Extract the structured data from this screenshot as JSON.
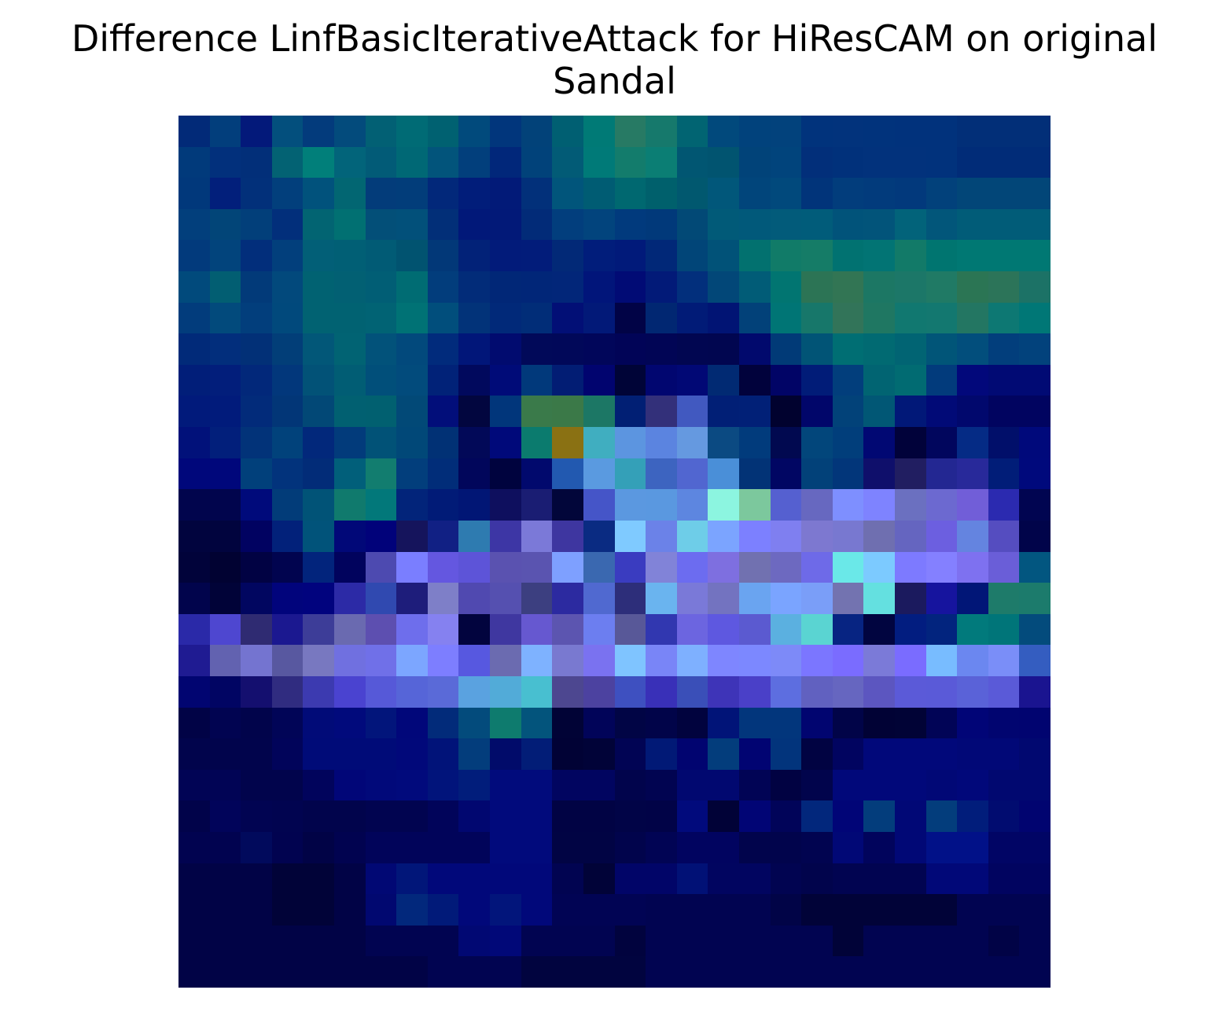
{
  "title": {
    "line1": "Difference LinfBasicIterativeAttack for HiResCAM on original",
    "line2": "Sandal"
  },
  "chart_data": {
    "type": "heatmap",
    "title": "Difference LinfBasicIterativeAttack for HiResCAM on original Sandal",
    "xlabel": "",
    "ylabel": "",
    "axes_visible": false,
    "grid": false,
    "legend": "none",
    "rows": 28,
    "cols": 28,
    "cell_colors": [
      [
        "#022a78",
        "#023e7c",
        "#03197a",
        "#034f7d",
        "#033b7c",
        "#034b7c",
        "#026074",
        "#006b75",
        "#006171",
        "#014a7c",
        "#01367c",
        "#024279",
        "#005f72",
        "#007a76",
        "#277a64",
        "#16796c",
        "#016472",
        "#01497c",
        "#01427c",
        "#02427c",
        "#01337c",
        "#02337c",
        "#01337c",
        "#01327c",
        "#01327c",
        "#022f78",
        "#022f78",
        "#022f78"
      ],
      [
        "#013a7b",
        "#02307c",
        "#022f79",
        "#036273",
        "#017f7a",
        "#02647a",
        "#025b77",
        "#006875",
        "#02547b",
        "#023f7c",
        "#01277a",
        "#01427a",
        "#025b76",
        "#007a78",
        "#137c6c",
        "#0b7e74",
        "#015672",
        "#015470",
        "#014379",
        "#01447c",
        "#022f7a",
        "#01317b",
        "#02327c",
        "#02327c",
        "#01327c",
        "#012c78",
        "#012c78",
        "#012c78"
      ],
      [
        "#01387b",
        "#021f7b",
        "#02307a",
        "#023f7c",
        "#01527c",
        "#026672",
        "#033c7a",
        "#023d7a",
        "#02287a",
        "#011d7a",
        "#021a78",
        "#02307a",
        "#01557b",
        "#005c73",
        "#006870",
        "#00606c",
        "#01586f",
        "#01577a",
        "#01457b",
        "#01497c",
        "#01347a",
        "#023d7c",
        "#023b7c",
        "#02397c",
        "#02417b",
        "#024678",
        "#024678",
        "#024678"
      ],
      [
        "#023f7c",
        "#024578",
        "#023f7a",
        "#022f7b",
        "#026472",
        "#017072",
        "#034f78",
        "#02507a",
        "#022f78",
        "#011879",
        "#021978",
        "#022b78",
        "#023e7d",
        "#02447d",
        "#013a7d",
        "#01397a",
        "#024976",
        "#015a78",
        "#01597a",
        "#025b7a",
        "#015c7a",
        "#01537a",
        "#02547a",
        "#02637a",
        "#02567a",
        "#015c78",
        "#015c78",
        "#015c78"
      ],
      [
        "#023a7c",
        "#02447c",
        "#022e7b",
        "#023f7c",
        "#025f77",
        "#015f75",
        "#015b75",
        "#015370",
        "#023878",
        "#022278",
        "#021b7a",
        "#021c7a",
        "#022977",
        "#011d7b",
        "#011a7a",
        "#012878",
        "#014578",
        "#015278",
        "#02716f",
        "#117b68",
        "#157c67",
        "#017271",
        "#027474",
        "#127a68",
        "#007570",
        "#007873",
        "#007873",
        "#007873"
      ],
      [
        "#014a7c",
        "#025e72",
        "#023a79",
        "#02497c",
        "#016272",
        "#026073",
        "#015e75",
        "#006c73",
        "#023d7c",
        "#022c79",
        "#012777",
        "#012678",
        "#022679",
        "#01157a",
        "#010b75",
        "#021a78",
        "#022f7c",
        "#024778",
        "#015c77",
        "#017571",
        "#2c7455",
        "#327554",
        "#1c7764",
        "#1c7768",
        "#207a65",
        "#2b7554",
        "#2c7459",
        "#1c7266"
      ],
      [
        "#023c7c",
        "#024a7c",
        "#023e7c",
        "#01497c",
        "#016272",
        "#016272",
        "#016374",
        "#007275",
        "#014e7c",
        "#023379",
        "#012979",
        "#012d78",
        "#020f76",
        "#021978",
        "#010346",
        "#012772",
        "#011b77",
        "#011474",
        "#024179",
        "#007575",
        "#17776a",
        "#327459",
        "#1f7762",
        "#117870",
        "#137870",
        "#237662",
        "#0d7873",
        "#007776"
      ],
      [
        "#012a79",
        "#022e7c",
        "#023077",
        "#023e78",
        "#025778",
        "#016373",
        "#02527a",
        "#02497c",
        "#012b7c",
        "#011679",
        "#010b6f",
        "#010959",
        "#010859",
        "#01065a",
        "#010457",
        "#010555",
        "#010651",
        "#010650",
        "#01096d",
        "#013a77",
        "#015476",
        "#006e73",
        "#016a72",
        "#016473",
        "#015578",
        "#024e7c",
        "#023e7c",
        "#02427c"
      ],
      [
        "#011e79",
        "#021e7b",
        "#02287a",
        "#02377b",
        "#025277",
        "#015d74",
        "#014f7a",
        "#024b7c",
        "#012278",
        "#01095d",
        "#000b78",
        "#01397b",
        "#021d74",
        "#01046f",
        "#000437",
        "#010670",
        "#010875",
        "#012a73",
        "#01023c",
        "#010466",
        "#011c78",
        "#023e7c",
        "#016472",
        "#016b72",
        "#023b7c",
        "#02087b",
        "#010a74",
        "#010a74"
      ],
      [
        "#011a7b",
        "#011b7b",
        "#022b7a",
        "#023677",
        "#024876",
        "#016071",
        "#016070",
        "#024977",
        "#020e7a",
        "#02063f",
        "#01367b",
        "#3a7a4a",
        "#3b7948",
        "#1c7765",
        "#011f74",
        "#33307a",
        "#4159c0",
        "#011f76",
        "#012077",
        "#01022f",
        "#01066a",
        "#024279",
        "#015775",
        "#011878",
        "#010a77",
        "#01086d",
        "#010460",
        "#010460"
      ],
      [
        "#01117a",
        "#021f7b",
        "#023379",
        "#01427b",
        "#02287b",
        "#023b7b",
        "#015277",
        "#014878",
        "#013175",
        "#020958",
        "#00097a",
        "#0b7b6e",
        "#8a7113",
        "#40aec0",
        "#5c95e0",
        "#5b84e0",
        "#6599e0",
        "#0b4a82",
        "#013b7c",
        "#010950",
        "#02467b",
        "#013e7b",
        "#010873",
        "#01023a",
        "#01065d",
        "#052b85",
        "#010f6a",
        "#00097b"
      ],
      [
        "#00077b",
        "#00077b",
        "#01407b",
        "#02337c",
        "#022c78",
        "#015f7a",
        "#127d6f",
        "#023e7c",
        "#012d79",
        "#01065b",
        "#00033e",
        "#01096d",
        "#2259b0",
        "#5a9ae0",
        "#34a0b8",
        "#3d64c0",
        "#5166d0",
        "#4a8fd8",
        "#023376",
        "#010663",
        "#024179",
        "#02367a",
        "#0f0f6b",
        "#211e61",
        "#232792",
        "#28299a",
        "#011d78",
        "#00097c"
      ],
      [
        "#01054d",
        "#01054d",
        "#000a7b",
        "#023c79",
        "#015377",
        "#107a6d",
        "#02787a",
        "#02247a",
        "#011b77",
        "#011675",
        "#0e0f5e",
        "#1a1d73",
        "#02063a",
        "#4555c8",
        "#5b98e0",
        "#5a98e0",
        "#5d86e0",
        "#8cf5e0",
        "#7cc89d",
        "#5560d0",
        "#6768c0",
        "#7e8fff",
        "#7e83ff",
        "#6b70c0",
        "#6c69d0",
        "#715ed8",
        "#2b2ab0",
        "#010551"
      ],
      [
        "#01043e",
        "#01043e",
        "#010261",
        "#02217a",
        "#01537a",
        "#010878",
        "#01027a",
        "#15145c",
        "#112084",
        "#2e7bb0",
        "#3d36a5",
        "#7b79d8",
        "#3e36a0",
        "#0a2b82",
        "#7fcaff",
        "#6b82e8",
        "#6ecde8",
        "#7ba4ff",
        "#7c80ff",
        "#7f7ff0",
        "#7d78d0",
        "#7878d0",
        "#6f6fb0",
        "#6565c0",
        "#6c5fe0",
        "#6484e0",
        "#554dc0",
        "#01044a"
      ],
      [
        "#01033a",
        "#010232",
        "#010243",
        "#01044f",
        "#02247c",
        "#01035d",
        "#4d4ab0",
        "#7a7eff",
        "#6457e0",
        "#5d54d8",
        "#5a52b0",
        "#5a54b0",
        "#7ea0ff",
        "#3a68b0",
        "#3a3cc0",
        "#8183d8",
        "#6c6cf0",
        "#7e6fe0",
        "#7171b0",
        "#6d69c0",
        "#6e6ae8",
        "#6ae8e8",
        "#7ccaff",
        "#7d7aff",
        "#8480ff",
        "#7e71f0",
        "#6a5ed8",
        "#025680"
      ],
      [
        "#01044c",
        "#010338",
        "#010660",
        "#01047c",
        "#01037e",
        "#2c2aa6",
        "#3049b0",
        "#1e1d7b",
        "#7e7fc8",
        "#5049b0",
        "#5550b0",
        "#3c3f80",
        "#2c2aa0",
        "#5069d0",
        "#2d2e7a",
        "#6ab4ef",
        "#7a79d8",
        "#7373c0",
        "#6aa4f0",
        "#7aa4ff",
        "#7a9ef8",
        "#7373b0",
        "#64e0e0",
        "#1b1a5e",
        "#16149e",
        "#011677",
        "#1e7b6a",
        "#1c7b6c"
      ],
      [
        "#2a29a8",
        "#4e47d0",
        "#2f2b72",
        "#1b1890",
        "#3d3d98",
        "#6a6ab0",
        "#5d4fb0",
        "#6e6eec",
        "#8581f0",
        "#02043e",
        "#3f37a0",
        "#6658d0",
        "#5c55b0",
        "#6c7ef0",
        "#585898",
        "#3137b0",
        "#6c65e0",
        "#5e58e0",
        "#5b5ad0",
        "#5bb0e0",
        "#5ad4d2",
        "#072482",
        "#010540",
        "#021d80",
        "#02247e",
        "#017a7c",
        "#007579",
        "#034b7c"
      ],
      [
        "#1f1b92",
        "#6262b0",
        "#7474d0",
        "#5858a0",
        "#7878c0",
        "#7070e0",
        "#7070e8",
        "#7ca6ff",
        "#7d7eff",
        "#5758e0",
        "#6b6bb0",
        "#7eb2ff",
        "#7979d0",
        "#7a72f0",
        "#7fc4ff",
        "#7985f7",
        "#7eb0ff",
        "#7e86ff",
        "#7c88ff",
        "#7d8af8",
        "#7b76ff",
        "#7a6cff",
        "#7b7ad8",
        "#7a6cff",
        "#78bcff",
        "#6b87f0",
        "#7a8ef8",
        "#345dc0"
      ],
      [
        "#010571",
        "#010563",
        "#140f6f",
        "#302c80",
        "#3c3ab0",
        "#4a43d0",
        "#5659d8",
        "#5665d8",
        "#5a6ad8",
        "#5aa2e0",
        "#52abd8",
        "#48bfd0",
        "#4d4790",
        "#4c42a0",
        "#3e50c0",
        "#3930b8",
        "#3a4fb8",
        "#3e34b8",
        "#4a40c8",
        "#5d6ee0",
        "#6161c0",
        "#6666c0",
        "#5c56c0",
        "#5b5ad8",
        "#5a5ad8",
        "#5a62d8",
        "#5a5ad8",
        "#1a1490"
      ],
      [
        "#010346",
        "#010451",
        "#01044b",
        "#010557",
        "#010b78",
        "#010a7c",
        "#02157b",
        "#01077a",
        "#022b7a",
        "#034b7c",
        "#0e7b6e",
        "#03547c",
        "#010336",
        "#010459",
        "#010545",
        "#010449",
        "#01033e",
        "#011478",
        "#02367c",
        "#02367c",
        "#010570",
        "#010448",
        "#010235",
        "#010336",
        "#010456",
        "#010577",
        "#010570",
        "#010470"
      ],
      [
        "#01044c",
        "#01044c",
        "#01044c",
        "#01045a",
        "#000b78",
        "#000b78",
        "#000b78",
        "#01087a",
        "#011379",
        "#033d7c",
        "#010b6a",
        "#021d77",
        "#010235",
        "#010338",
        "#010454",
        "#011976",
        "#010470",
        "#033d7c",
        "#010472",
        "#02347c",
        "#010342",
        "#010460",
        "#01087a",
        "#01087a",
        "#01087a",
        "#010877",
        "#010877",
        "#010870"
      ],
      [
        "#010455",
        "#010455",
        "#01044c",
        "#01044c",
        "#01045c",
        "#010678",
        "#01097a",
        "#010a7c",
        "#01147b",
        "#011d7b",
        "#010b7c",
        "#010b7c",
        "#010560",
        "#010560",
        "#01044c",
        "#010451",
        "#010870",
        "#010870",
        "#010455",
        "#010242",
        "#01044c",
        "#01087a",
        "#01087a",
        "#01087a",
        "#010876",
        "#01087a",
        "#010870",
        "#010870"
      ],
      [
        "#01034a",
        "#01045a",
        "#010452",
        "#010450",
        "#01044c",
        "#01044c",
        "#010450",
        "#010450",
        "#01045a",
        "#010770",
        "#010a7c",
        "#010a7c",
        "#010344",
        "#010344",
        "#010447",
        "#010347",
        "#010a7c",
        "#010237",
        "#010575",
        "#010459",
        "#02277c",
        "#010577",
        "#033d7c",
        "#010876",
        "#033d7c",
        "#011d7b",
        "#010c70",
        "#010470"
      ],
      [
        "#010350",
        "#010350",
        "#010a5c",
        "#010350",
        "#010346",
        "#010350",
        "#01045a",
        "#01045a",
        "#01045a",
        "#01045a",
        "#010a7c",
        "#010a7c",
        "#010444",
        "#010444",
        "#01044c",
        "#010454",
        "#010460",
        "#010460",
        "#01044c",
        "#01044c",
        "#010450",
        "#010876",
        "#01045c",
        "#010876",
        "#011188",
        "#011188",
        "#010565",
        "#010565"
      ],
      [
        "#010346",
        "#010346",
        "#010346",
        "#010338",
        "#010338",
        "#010346",
        "#010874",
        "#011679",
        "#01087a",
        "#01087a",
        "#01087a",
        "#01087a",
        "#010451",
        "#010338",
        "#010568",
        "#010568",
        "#011176",
        "#010560",
        "#010560",
        "#010451",
        "#01044c",
        "#010451",
        "#010451",
        "#010451",
        "#010878",
        "#010878",
        "#010460",
        "#010460"
      ],
      [
        "#010346",
        "#010346",
        "#010346",
        "#010338",
        "#010338",
        "#010346",
        "#010870",
        "#02287c",
        "#011a79",
        "#01087a",
        "#02157b",
        "#01087a",
        "#010454",
        "#010454",
        "#010454",
        "#010451",
        "#010451",
        "#010451",
        "#010451",
        "#010447",
        "#010338",
        "#010338",
        "#010338",
        "#010338",
        "#010338",
        "#010451",
        "#010451",
        "#010451"
      ],
      [
        "#010346",
        "#010346",
        "#010346",
        "#010346",
        "#010346",
        "#010346",
        "#010451",
        "#010451",
        "#010451",
        "#010873",
        "#010878",
        "#010451",
        "#010451",
        "#010451",
        "#01033e",
        "#010451",
        "#010451",
        "#010451",
        "#010451",
        "#010451",
        "#010451",
        "#010338",
        "#010451",
        "#010451",
        "#010451",
        "#010451",
        "#010346",
        "#010451"
      ],
      [
        "#010346",
        "#010346",
        "#010346",
        "#010346",
        "#010346",
        "#010346",
        "#010346",
        "#010346",
        "#010451",
        "#010451",
        "#010451",
        "#01043f",
        "#01043f",
        "#01043f",
        "#01043f",
        "#010451",
        "#010451",
        "#010451",
        "#010451",
        "#010451",
        "#010451",
        "#010451",
        "#010451",
        "#010451",
        "#010451",
        "#010451",
        "#010451",
        "#010451"
      ]
    ]
  }
}
